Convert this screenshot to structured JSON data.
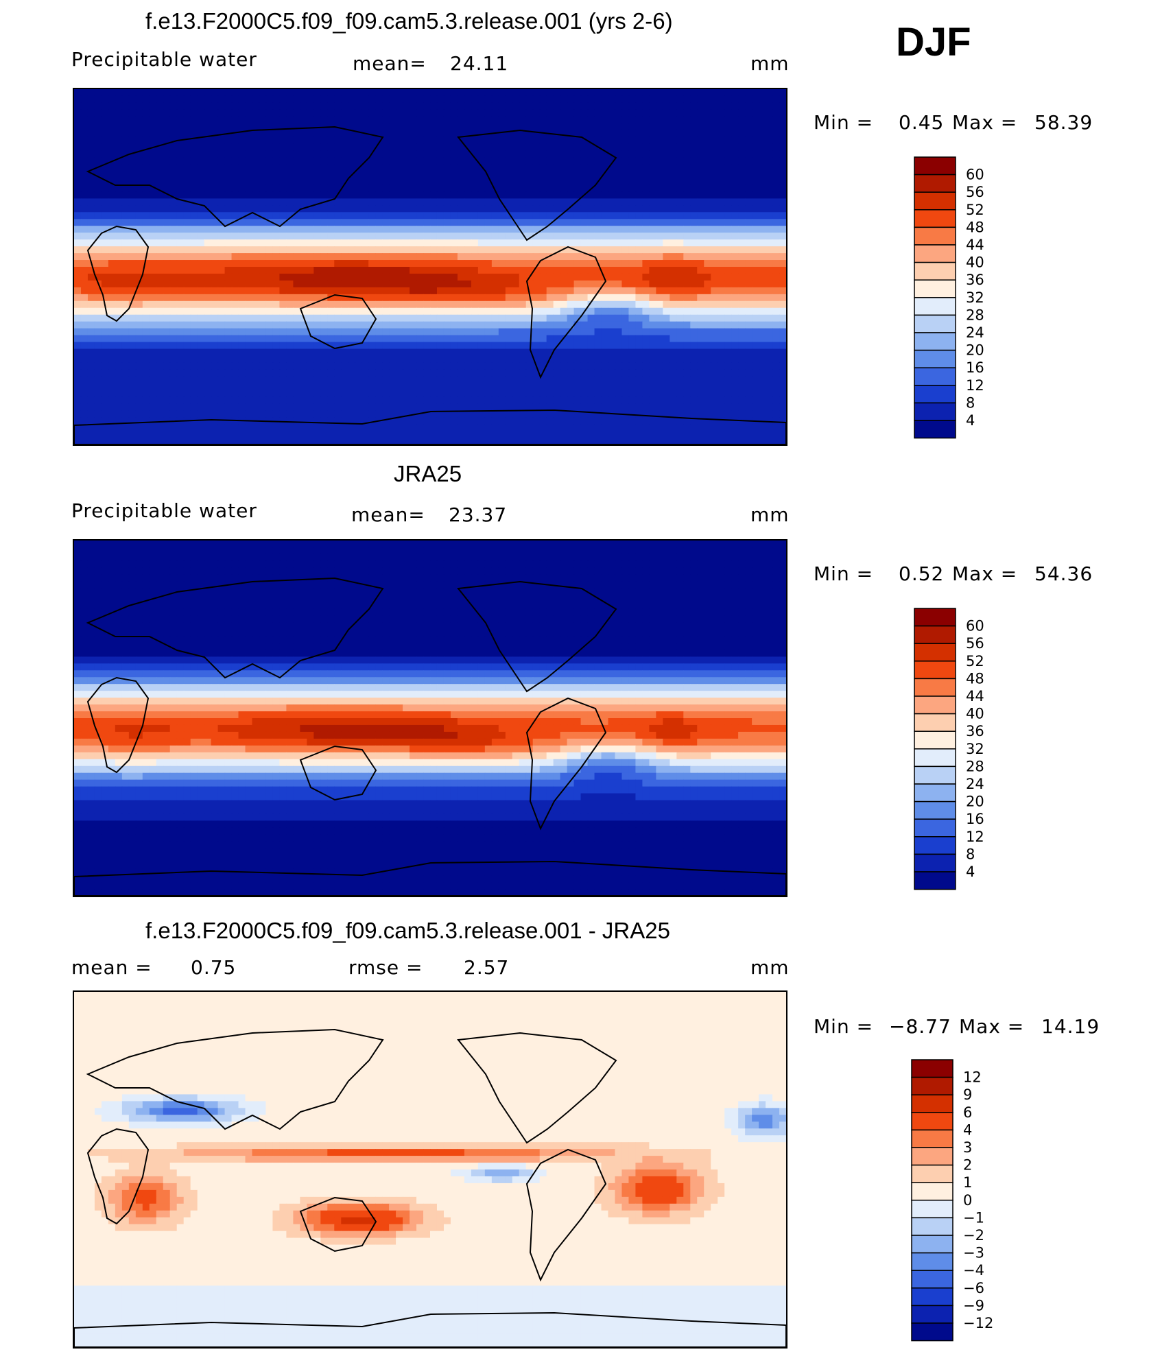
{
  "season": "DJF",
  "chart_data": [
    {
      "type": "heatmap",
      "title": "f.e13.F2000C5.f09_f09.cam5.3.release.001 (yrs 2-6)",
      "left_label": "Precipitable water",
      "center_label": "mean=",
      "center_value": "24.11",
      "units": "mm",
      "min_label": "Min =",
      "min_value": "0.45",
      "max_label": "Max =",
      "max_value": "58.39",
      "field": "precipitable_water",
      "colorbar": {
        "levels": [
          "60",
          "56",
          "52",
          "48",
          "44",
          "40",
          "36",
          "32",
          "28",
          "24",
          "20",
          "16",
          "12",
          "8",
          "4"
        ],
        "colors": [
          "#8b0000",
          "#b01a00",
          "#d43000",
          "#f04810",
          "#f87a45",
          "#fca680",
          "#fdcfb0",
          "#fff0e0",
          "#e2edfb",
          "#b9d1f5",
          "#8db2f0",
          "#5f8de8",
          "#3b66e0",
          "#1a3fcf",
          "#0c22b0",
          "#000a8c"
        ]
      }
    },
    {
      "type": "heatmap",
      "title": "JRA25",
      "left_label": "Precipitable water",
      "center_label": "mean=",
      "center_value": "23.37",
      "units": "mm",
      "min_label": "Min =",
      "min_value": "0.52",
      "max_label": "Max =",
      "max_value": "54.36",
      "field": "precipitable_water",
      "colorbar": {
        "levels": [
          "60",
          "56",
          "52",
          "48",
          "44",
          "40",
          "36",
          "32",
          "28",
          "24",
          "20",
          "16",
          "12",
          "8",
          "4"
        ],
        "colors": [
          "#8b0000",
          "#b01a00",
          "#d43000",
          "#f04810",
          "#f87a45",
          "#fca680",
          "#fdcfb0",
          "#fff0e0",
          "#e2edfb",
          "#b9d1f5",
          "#8db2f0",
          "#5f8de8",
          "#3b66e0",
          "#1a3fcf",
          "#0c22b0",
          "#000a8c"
        ]
      }
    },
    {
      "type": "heatmap",
      "title": "f.e13.F2000C5.f09_f09.cam5.3.release.001 - JRA25",
      "left_label": "mean =",
      "left_value": "0.75",
      "center_label": "rmse =",
      "center_value": "2.57",
      "units": "mm",
      "min_label": "Min =",
      "min_value": "−8.77",
      "max_label": "Max =",
      "max_value": "14.19",
      "field": "difference",
      "colorbar": {
        "levels": [
          "12",
          "9",
          "6",
          "4",
          "3",
          "2",
          "1",
          "0",
          "−1",
          "−2",
          "−3",
          "−4",
          "−6",
          "−9",
          "−12"
        ],
        "colors": [
          "#8b0000",
          "#b01a00",
          "#d43000",
          "#f04810",
          "#f87a45",
          "#fca680",
          "#fdcfb0",
          "#fff0e0",
          "#e2edfb",
          "#b9d1f5",
          "#8db2f0",
          "#5f8de8",
          "#3b66e0",
          "#1a3fcf",
          "#0c22b0",
          "#000a8c"
        ]
      }
    }
  ]
}
